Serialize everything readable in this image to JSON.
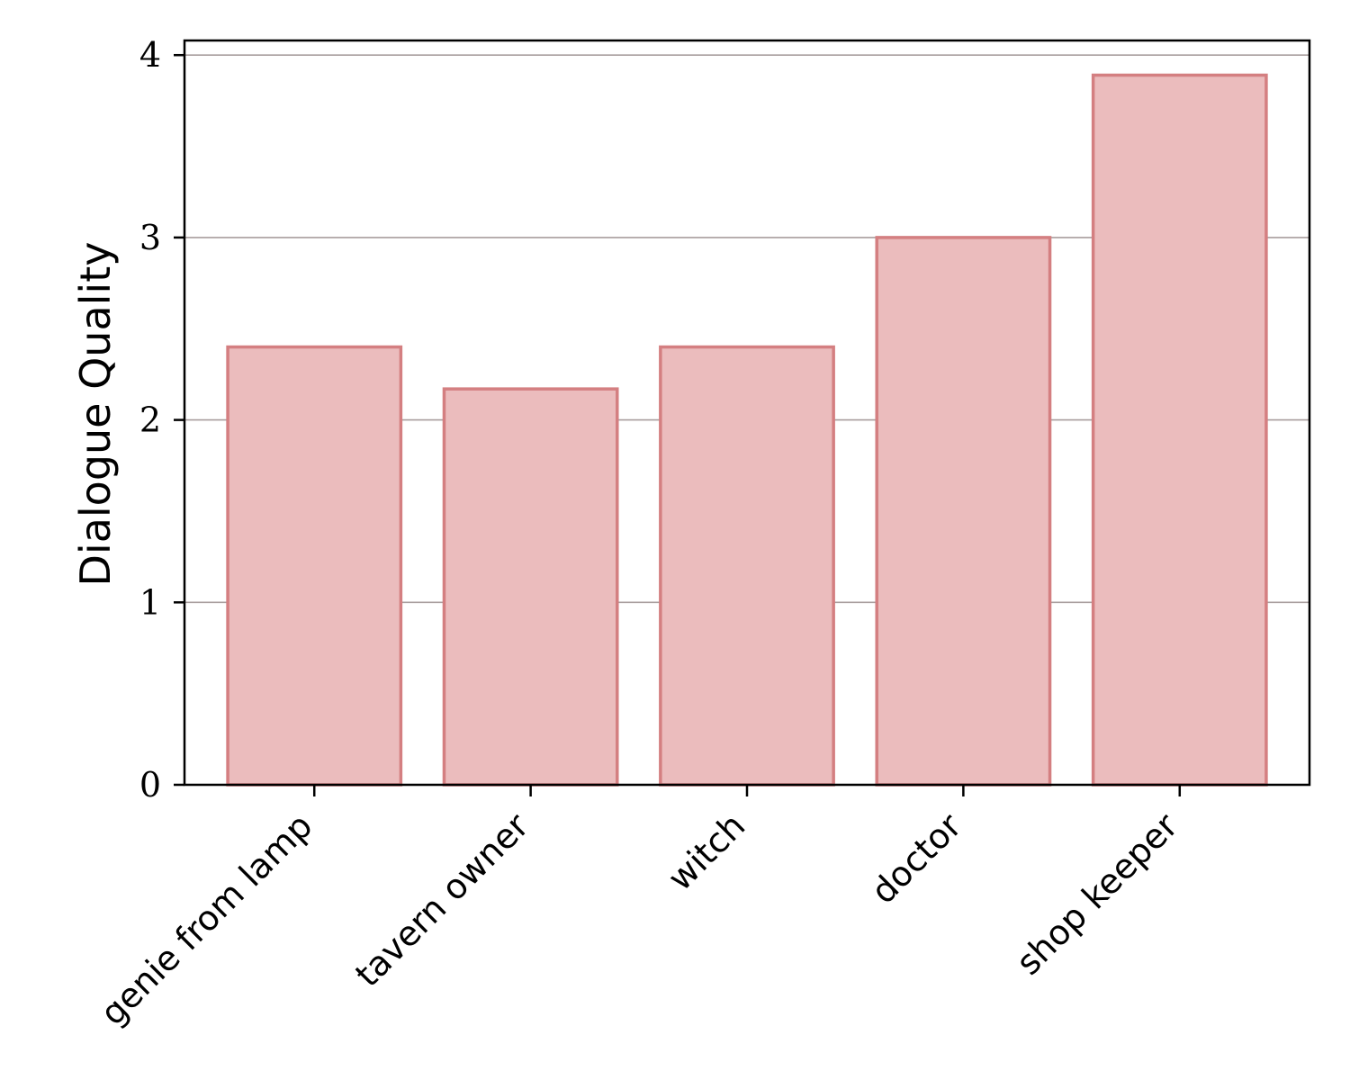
{
  "chart_data": {
    "type": "bar",
    "categories": [
      "genie from lamp",
      "tavern owner",
      "witch",
      "doctor",
      "shop keeper"
    ],
    "values": [
      2.4,
      2.17,
      2.4,
      3.0,
      3.89
    ],
    "xlabel": "",
    "ylabel": "Dialogue Quality",
    "ylim": [
      0,
      4.08
    ],
    "yticks": [
      0,
      1,
      2,
      3,
      4
    ],
    "grid": "horizontal",
    "colors": {
      "bar_fill": "#ebbcbd",
      "bar_edge": "#d47f81",
      "grid": "#a89d9d",
      "axis": "#000000"
    }
  }
}
